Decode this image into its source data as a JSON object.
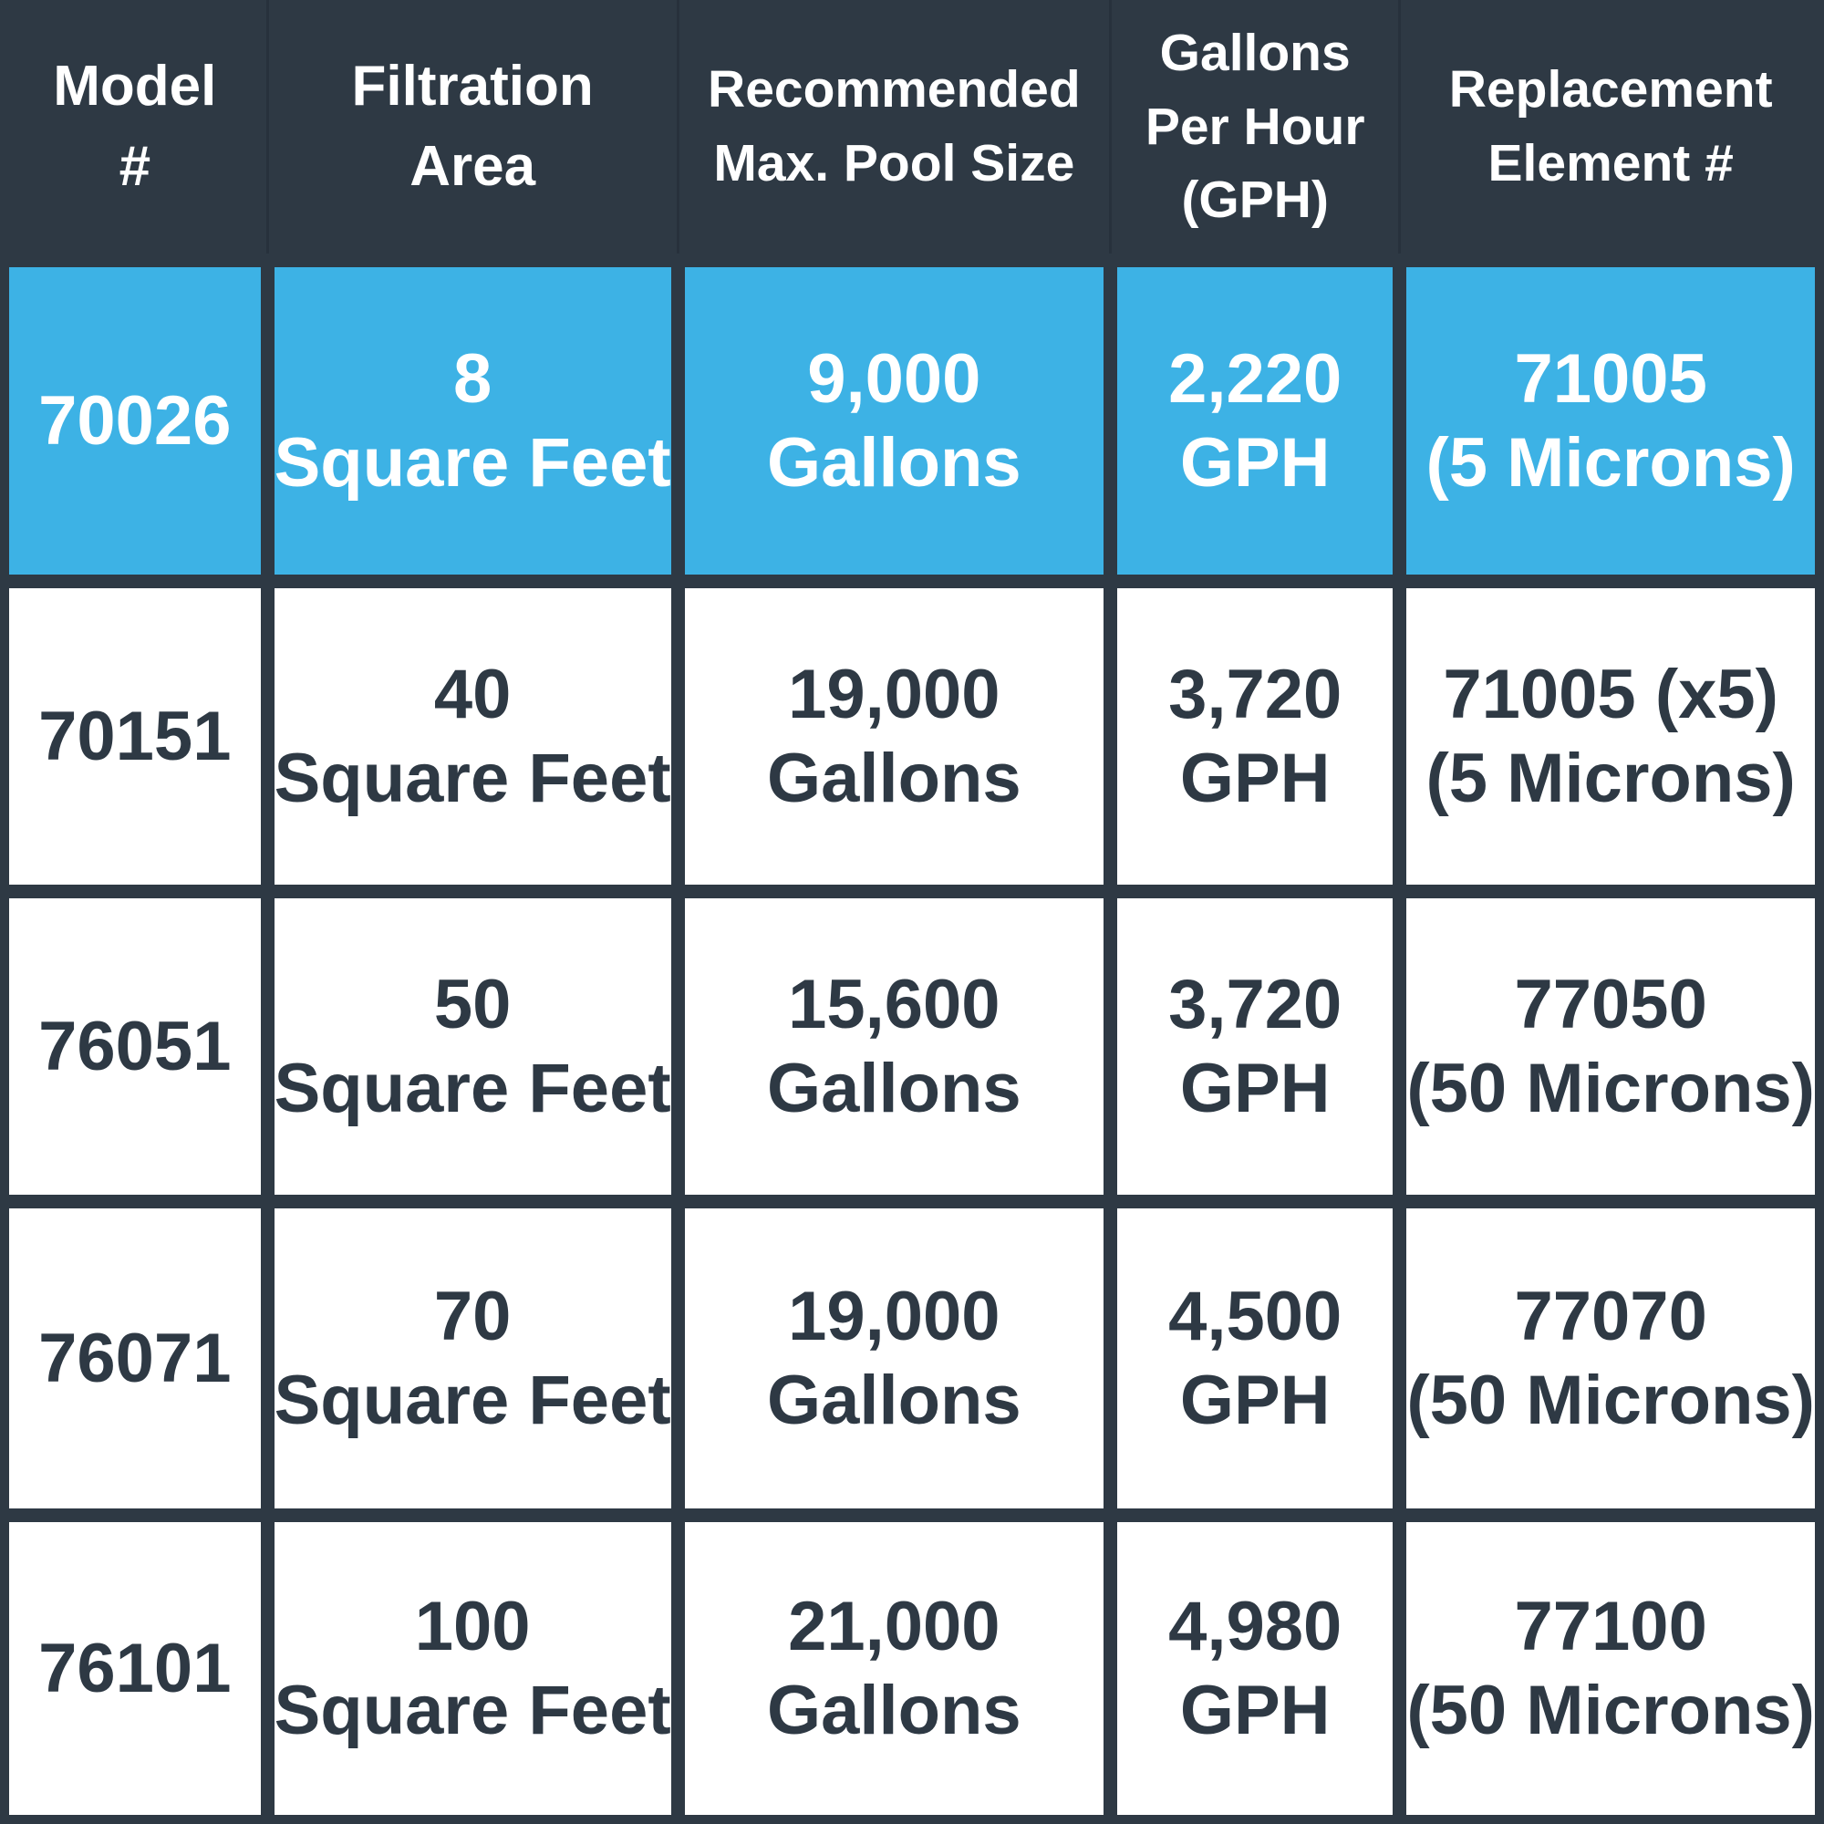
{
  "colors": {
    "background": "#2e3944",
    "header_background": "#2e3944",
    "header_text": "#ffffff",
    "highlight_row_background": "#3db2e5",
    "highlight_row_text": "#ffffff",
    "cell_background": "#ffffff",
    "body_text": "#2e3944"
  },
  "table": {
    "header": {
      "cells": [
        {
          "name": "model-number",
          "lines": [
            "Model",
            "#"
          ]
        },
        {
          "name": "filtration-area",
          "lines": [
            "Filtration",
            "Area"
          ]
        },
        {
          "name": "recommended-max-pool-size",
          "lines": [
            "Recommended",
            "Max. Pool Size"
          ]
        },
        {
          "name": "gallons-per-hour",
          "lines": [
            "Gallons",
            "Per Hour",
            "(GPH)"
          ]
        },
        {
          "name": "replacement-element",
          "lines": [
            "Replacement",
            "Element #"
          ]
        }
      ]
    },
    "rows": [
      {
        "highlighted": true,
        "cells": [
          {
            "lines": [
              "70026"
            ]
          },
          {
            "lines": [
              "8",
              "Square Feet"
            ]
          },
          {
            "lines": [
              "9,000",
              "Gallons"
            ]
          },
          {
            "lines": [
              "2,220",
              "GPH"
            ]
          },
          {
            "lines": [
              "71005",
              "(5 Microns)"
            ]
          }
        ]
      },
      {
        "highlighted": false,
        "cells": [
          {
            "lines": [
              "70151"
            ]
          },
          {
            "lines": [
              "40",
              "Square Feet"
            ]
          },
          {
            "lines": [
              "19,000",
              "Gallons"
            ]
          },
          {
            "lines": [
              "3,720",
              "GPH"
            ]
          },
          {
            "lines": [
              "71005 (x5)",
              "(5 Microns)"
            ]
          }
        ]
      },
      {
        "highlighted": false,
        "cells": [
          {
            "lines": [
              "76051"
            ]
          },
          {
            "lines": [
              "50",
              "Square Feet"
            ]
          },
          {
            "lines": [
              "15,600",
              "Gallons"
            ]
          },
          {
            "lines": [
              "3,720",
              "GPH"
            ]
          },
          {
            "lines": [
              "77050",
              "(50 Microns)"
            ]
          }
        ]
      },
      {
        "highlighted": false,
        "cells": [
          {
            "lines": [
              "76071"
            ]
          },
          {
            "lines": [
              "70",
              "Square Feet"
            ]
          },
          {
            "lines": [
              "19,000",
              "Gallons"
            ]
          },
          {
            "lines": [
              "4,500",
              "GPH"
            ]
          },
          {
            "lines": [
              "77070",
              "(50 Microns)"
            ]
          }
        ]
      },
      {
        "highlighted": false,
        "cells": [
          {
            "lines": [
              "76101"
            ]
          },
          {
            "lines": [
              "100",
              "Square Feet"
            ]
          },
          {
            "lines": [
              "21,000",
              "Gallons"
            ]
          },
          {
            "lines": [
              "4,980",
              "GPH"
            ]
          },
          {
            "lines": [
              "77100",
              "(50 Microns)"
            ]
          }
        ]
      }
    ]
  }
}
